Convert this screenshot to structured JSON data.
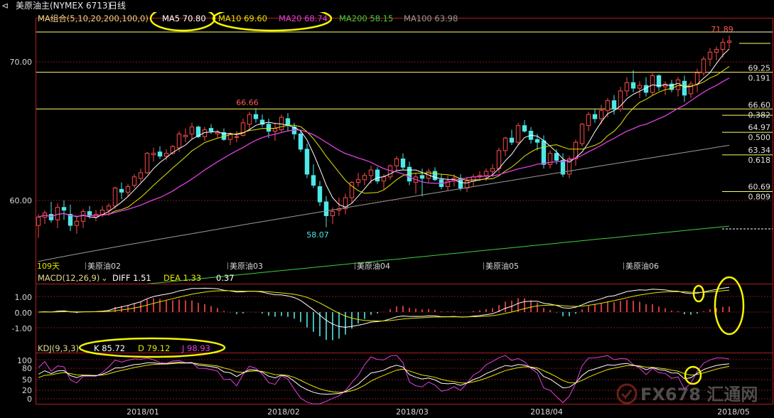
{
  "header": {
    "back_icon": "back-arrow-icon",
    "instrument": "美原油主(NYMEX 6713)",
    "period": "日线"
  },
  "legends": {
    "ma": [
      {
        "text": "MA组合(5,10,20,200,100,0)",
        "color": "#e8d98a"
      },
      {
        "text": "MA5 70.80",
        "color": "#ffffff"
      },
      {
        "text": "MA10 69.60",
        "color": "#e6e600"
      },
      {
        "text": "MA20 68.74",
        "color": "#e040e0"
      },
      {
        "text": "MA200 58.15",
        "color": "#3ecf3e"
      },
      {
        "text": "MA100 63.98",
        "color": "#9a9a9a"
      }
    ],
    "macd": [
      {
        "text": "MACD(12,26,9)",
        "color": "#e8d98a"
      },
      {
        "text": "DIFF 1.51",
        "color": "#ffffff"
      },
      {
        "text": "DEA 1.33",
        "color": "#e6e600"
      },
      {
        "text": "0.37",
        "color": "#ffffff"
      }
    ],
    "kdj": [
      {
        "text": "KDJ(9,3,3)",
        "color": "#e8d98a"
      },
      {
        "text": "K 85.72",
        "color": "#ffffff"
      },
      {
        "text": "D 79.12",
        "color": "#e6e600"
      },
      {
        "text": "J 98.93",
        "color": "#e040e0"
      }
    ]
  },
  "price_axis": {
    "labels": [
      "70.00",
      "60.00"
    ]
  },
  "macd_axis": {
    "labels": [
      "1.00",
      "0.00",
      "-1.00"
    ]
  },
  "kdj_axis": {
    "labels": [
      "100",
      "80",
      "50",
      "20",
      "0"
    ]
  },
  "date_axis": {
    "labels": [
      "2018/01",
      "2018/02",
      "2018/03",
      "2018/04",
      "2018/05"
    ]
  },
  "contract_markers": [
    "美原油02",
    "美原油03",
    "美原油04",
    "美原油05",
    "美原油06"
  ],
  "bars_note": "109天",
  "price_annotations": {
    "high_recent": "71.89",
    "high_feb": "66.66",
    "low_feb": "58.07"
  },
  "fibonacci": [
    {
      "price": "69.25",
      "ratio": "0.191"
    },
    {
      "price": "66.60",
      "ratio": "0.382"
    },
    {
      "price": "64.97",
      "ratio": "0.500"
    },
    {
      "price": "63.34",
      "ratio": "0.618"
    },
    {
      "price": "60.69",
      "ratio": "0.809"
    }
  ],
  "watermark": {
    "logo_icon": "fx678-logo-icon",
    "text": "FX678 汇通网"
  },
  "colors": {
    "up": "#ff4a4a",
    "down": "#4ee8e8",
    "ma5": "#ffffff",
    "ma10": "#e6e600",
    "ma20": "#e040e0",
    "ma100": "#9a9a9a",
    "ma200": "#3ecf3e",
    "grid": "#7a1a1a",
    "axis": "#b01e1e",
    "fib": "#ffff66",
    "highlight": "#f5f500"
  },
  "chart_data": [
    {
      "type": "candlestick",
      "title": "美原油主(NYMEX 6713) 日线",
      "ylim": [
        56.5,
        72.5
      ],
      "series": [
        {
          "name": "MA5",
          "last": 70.8
        },
        {
          "name": "MA10",
          "last": 69.6
        },
        {
          "name": "MA20",
          "last": 68.74
        },
        {
          "name": "MA200",
          "last": 58.15
        },
        {
          "name": "MA100",
          "last": 63.98
        }
      ],
      "high_marker": 71.89,
      "annotated_high": 66.66,
      "annotated_low": 58.07,
      "ohlc": [
        [
          58.2,
          59.0,
          57.3,
          58.8
        ],
        [
          58.8,
          59.3,
          58.3,
          59.1
        ],
        [
          59.0,
          59.9,
          58.4,
          58.6
        ],
        [
          58.6,
          59.8,
          58.0,
          59.5
        ],
        [
          59.5,
          60.0,
          58.6,
          59.3
        ],
        [
          59.0,
          59.7,
          57.8,
          58.2
        ],
        [
          58.2,
          58.9,
          57.6,
          58.5
        ],
        [
          58.5,
          59.4,
          58.0,
          59.2
        ],
        [
          59.2,
          59.6,
          58.7,
          58.9
        ],
        [
          58.8,
          59.3,
          58.5,
          59.0
        ],
        [
          59.0,
          59.6,
          58.8,
          59.3
        ],
        [
          59.3,
          59.8,
          58.9,
          59.6
        ],
        [
          59.6,
          61.0,
          59.4,
          60.9
        ],
        [
          60.8,
          61.3,
          60.1,
          60.6
        ],
        [
          60.6,
          61.2,
          60.3,
          61.0
        ],
        [
          61.1,
          61.9,
          60.9,
          61.7
        ],
        [
          61.6,
          62.3,
          61.3,
          62.0
        ],
        [
          62.0,
          63.5,
          61.9,
          63.4
        ],
        [
          63.3,
          63.8,
          62.8,
          63.4
        ],
        [
          63.5,
          63.9,
          63.0,
          63.2
        ],
        [
          63.2,
          63.7,
          62.9,
          63.4
        ],
        [
          63.4,
          64.0,
          63.3,
          63.9
        ],
        [
          63.8,
          65.0,
          63.5,
          64.8
        ],
        [
          64.6,
          65.2,
          64.2,
          64.7
        ],
        [
          64.8,
          65.6,
          64.4,
          65.3
        ],
        [
          65.3,
          65.4,
          64.5,
          64.6
        ],
        [
          64.6,
          65.3,
          64.3,
          65.1
        ],
        [
          65.2,
          65.5,
          64.8,
          65.0
        ],
        [
          64.8,
          65.1,
          64.5,
          64.9
        ],
        [
          64.9,
          65.2,
          64.3,
          64.4
        ],
        [
          64.4,
          64.9,
          64.0,
          64.8
        ],
        [
          64.6,
          65.0,
          64.2,
          64.6
        ],
        [
          64.7,
          65.9,
          64.6,
          65.6
        ],
        [
          65.5,
          66.4,
          65.0,
          66.2
        ],
        [
          66.2,
          66.66,
          65.6,
          65.9
        ],
        [
          65.8,
          66.2,
          65.3,
          65.5
        ],
        [
          65.5,
          65.9,
          64.5,
          65.0
        ],
        [
          65.0,
          65.6,
          64.3,
          65.2
        ],
        [
          65.1,
          66.2,
          64.9,
          66.0
        ],
        [
          65.9,
          66.3,
          65.0,
          65.4
        ],
        [
          65.3,
          65.6,
          64.4,
          64.8
        ],
        [
          64.8,
          65.1,
          63.5,
          63.7
        ],
        [
          63.7,
          64.1,
          61.6,
          61.9
        ],
        [
          61.8,
          62.6,
          60.9,
          61.1
        ],
        [
          61.0,
          61.4,
          59.6,
          59.9
        ],
        [
          59.9,
          60.3,
          58.07,
          58.9
        ],
        [
          58.9,
          59.5,
          58.3,
          59.2
        ],
        [
          59.3,
          60.2,
          58.9,
          59.4
        ],
        [
          59.4,
          60.5,
          59.0,
          60.2
        ],
        [
          60.2,
          61.4,
          59.8,
          61.3
        ],
        [
          61.3,
          62.0,
          61.0,
          61.5
        ],
        [
          61.5,
          62.0,
          61.1,
          61.8
        ],
        [
          61.8,
          62.5,
          61.2,
          62.2
        ],
        [
          62.2,
          62.4,
          61.2,
          61.4
        ],
        [
          61.4,
          61.9,
          60.8,
          61.7
        ],
        [
          61.7,
          62.6,
          61.5,
          62.5
        ],
        [
          62.5,
          63.2,
          62.2,
          63.0
        ],
        [
          63.0,
          63.4,
          62.2,
          62.4
        ],
        [
          62.4,
          62.8,
          61.1,
          61.4
        ],
        [
          61.3,
          62.0,
          60.5,
          61.7
        ],
        [
          61.8,
          62.3,
          60.3,
          61.6
        ],
        [
          61.6,
          62.3,
          61.3,
          62.1
        ],
        [
          62.1,
          62.4,
          61.4,
          61.5
        ],
        [
          61.5,
          61.9,
          60.8,
          61.0
        ],
        [
          61.0,
          61.8,
          60.7,
          61.4
        ],
        [
          61.4,
          61.9,
          61.0,
          61.6
        ],
        [
          61.6,
          61.9,
          60.7,
          60.9
        ],
        [
          60.9,
          61.6,
          60.6,
          61.4
        ],
        [
          61.4,
          61.9,
          61.0,
          61.7
        ],
        [
          61.7,
          62.1,
          61.4,
          61.8
        ],
        [
          61.8,
          62.3,
          61.4,
          62.1
        ],
        [
          62.1,
          62.6,
          61.7,
          62.3
        ],
        [
          62.3,
          63.8,
          62.0,
          63.6
        ],
        [
          63.6,
          64.6,
          63.2,
          64.5
        ],
        [
          64.5,
          65.1,
          64.0,
          64.2
        ],
        [
          64.2,
          65.6,
          64.0,
          65.4
        ],
        [
          65.4,
          65.8,
          64.9,
          65.0
        ],
        [
          65.0,
          65.3,
          64.1,
          64.4
        ],
        [
          64.4,
          64.8,
          63.6,
          64.2
        ],
        [
          64.3,
          64.7,
          62.3,
          62.6
        ],
        [
          62.6,
          63.6,
          62.3,
          63.4
        ],
        [
          63.4,
          63.7,
          62.6,
          62.9
        ],
        [
          62.9,
          63.4,
          61.7,
          61.9
        ],
        [
          61.9,
          63.2,
          61.6,
          63.0
        ],
        [
          63.0,
          64.4,
          62.5,
          64.2
        ],
        [
          64.1,
          65.6,
          63.9,
          65.5
        ],
        [
          65.4,
          66.4,
          65.0,
          66.2
        ],
        [
          66.2,
          66.6,
          65.6,
          65.9
        ],
        [
          65.9,
          66.9,
          65.5,
          66.5
        ],
        [
          66.5,
          67.4,
          66.0,
          67.2
        ],
        [
          67.2,
          67.6,
          66.2,
          66.6
        ],
        [
          66.6,
          68.2,
          66.4,
          67.9
        ],
        [
          67.9,
          68.9,
          67.5,
          68.5
        ],
        [
          68.5,
          69.4,
          67.8,
          68.1
        ],
        [
          68.1,
          68.6,
          67.4,
          68.3
        ],
        [
          68.3,
          68.9,
          67.5,
          67.8
        ],
        [
          67.8,
          69.3,
          67.6,
          69.0
        ],
        [
          69.0,
          69.1,
          67.9,
          68.2
        ],
        [
          68.2,
          68.6,
          67.6,
          68.4
        ],
        [
          68.4,
          68.7,
          67.8,
          68.0
        ],
        [
          68.0,
          68.9,
          67.5,
          68.7
        ],
        [
          68.6,
          69.0,
          67.1,
          67.6
        ],
        [
          67.7,
          68.6,
          67.4,
          68.4
        ],
        [
          68.4,
          69.5,
          67.8,
          69.2
        ],
        [
          69.2,
          70.4,
          69.0,
          70.2
        ],
        [
          70.2,
          71.0,
          69.7,
          70.7
        ],
        [
          70.7,
          71.1,
          70.1,
          70.9
        ],
        [
          70.9,
          71.7,
          70.3,
          71.4
        ],
        [
          71.4,
          71.89,
          71.0,
          71.5
        ]
      ]
    },
    {
      "type": "bar",
      "title": "MACD(12,26,9)",
      "ylim": [
        -1.75,
        1.75
      ],
      "series": [
        {
          "name": "DIFF",
          "last": 1.51
        },
        {
          "name": "DEA",
          "last": 1.33
        },
        {
          "name": "MACD",
          "last": 0.37
        }
      ]
    },
    {
      "type": "line",
      "title": "KDJ(9,3,3)",
      "ylim": [
        -10,
        115
      ],
      "series": [
        {
          "name": "K",
          "last": 85.72
        },
        {
          "name": "D",
          "last": 79.12
        },
        {
          "name": "J",
          "last": 98.93
        }
      ]
    }
  ]
}
